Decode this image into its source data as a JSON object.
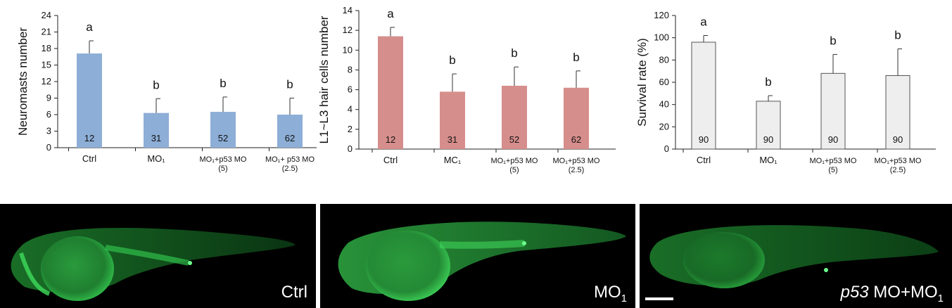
{
  "chart_data": [
    {
      "type": "bar",
      "ylabel": "Neuromasts number",
      "ylim": [
        0,
        24
      ],
      "yticks": [
        0,
        3,
        6,
        9,
        12,
        15,
        18,
        21,
        24
      ],
      "categories": [
        {
          "main": "Ctrl",
          "sub": ""
        },
        {
          "main": "MO₁",
          "sub": ""
        },
        {
          "main": "MO₁+p53 MO",
          "sub": "(5)"
        },
        {
          "main": "MO₁+ p53 MO",
          "sub": "(2.5)"
        }
      ],
      "values": [
        17.1,
        6.3,
        6.5,
        6.0
      ],
      "errors": [
        2.3,
        2.6,
        2.7,
        3.0
      ],
      "letters": [
        "a",
        "b",
        "b",
        "b"
      ],
      "n_labels": [
        "12",
        "31",
        "52",
        "62"
      ],
      "bar_color": "#8daed6"
    },
    {
      "type": "bar",
      "ylabel": "L1~L3 hair cells number",
      "ylim": [
        0,
        14
      ],
      "yticks": [
        0,
        2,
        4,
        6,
        8,
        10,
        12,
        14
      ],
      "categories": [
        {
          "main": "Ctrl",
          "sub": ""
        },
        {
          "main": "MC₁",
          "sub": ""
        },
        {
          "main": "MO₁+p53 MO",
          "sub": "(5)"
        },
        {
          "main": "MO₁+p53 MO",
          "sub": "(2.5)"
        }
      ],
      "values": [
        11.4,
        5.8,
        6.4,
        6.2
      ],
      "errors": [
        0.9,
        1.8,
        1.9,
        1.7
      ],
      "letters": [
        "a",
        "b",
        "b",
        "b"
      ],
      "n_labels": [
        "12",
        "31",
        "52",
        "62"
      ],
      "bar_color": "#d68e8c"
    },
    {
      "type": "bar",
      "ylabel": "Survival rate (%)",
      "ylim": [
        0,
        120
      ],
      "yticks": [
        0,
        20,
        40,
        60,
        80,
        100,
        120
      ],
      "categories": [
        {
          "main": "Ctrl",
          "sub": ""
        },
        {
          "main": "MO₁",
          "sub": ""
        },
        {
          "main": "MO₁+p53 MO",
          "sub": "(5)"
        },
        {
          "main": "MO₁+p53 MO",
          "sub": "(2.5)"
        }
      ],
      "values": [
        96,
        43,
        68,
        66
      ],
      "errors": [
        6,
        5,
        17,
        24
      ],
      "letters": [
        "a",
        "b",
        "b",
        "b"
      ],
      "n_labels": [
        "90",
        "90",
        "90",
        "90"
      ],
      "bar_color": "#eeeeee"
    }
  ],
  "images": [
    {
      "label": "Ctrl",
      "label_sub": ""
    },
    {
      "label": "MO",
      "label_sub": "1"
    },
    {
      "label_italic": "p53",
      "label": " MO+MO",
      "label_sub": "1"
    }
  ],
  "colors": {
    "fluorescence": "#2fc24a",
    "background": "#000000"
  }
}
